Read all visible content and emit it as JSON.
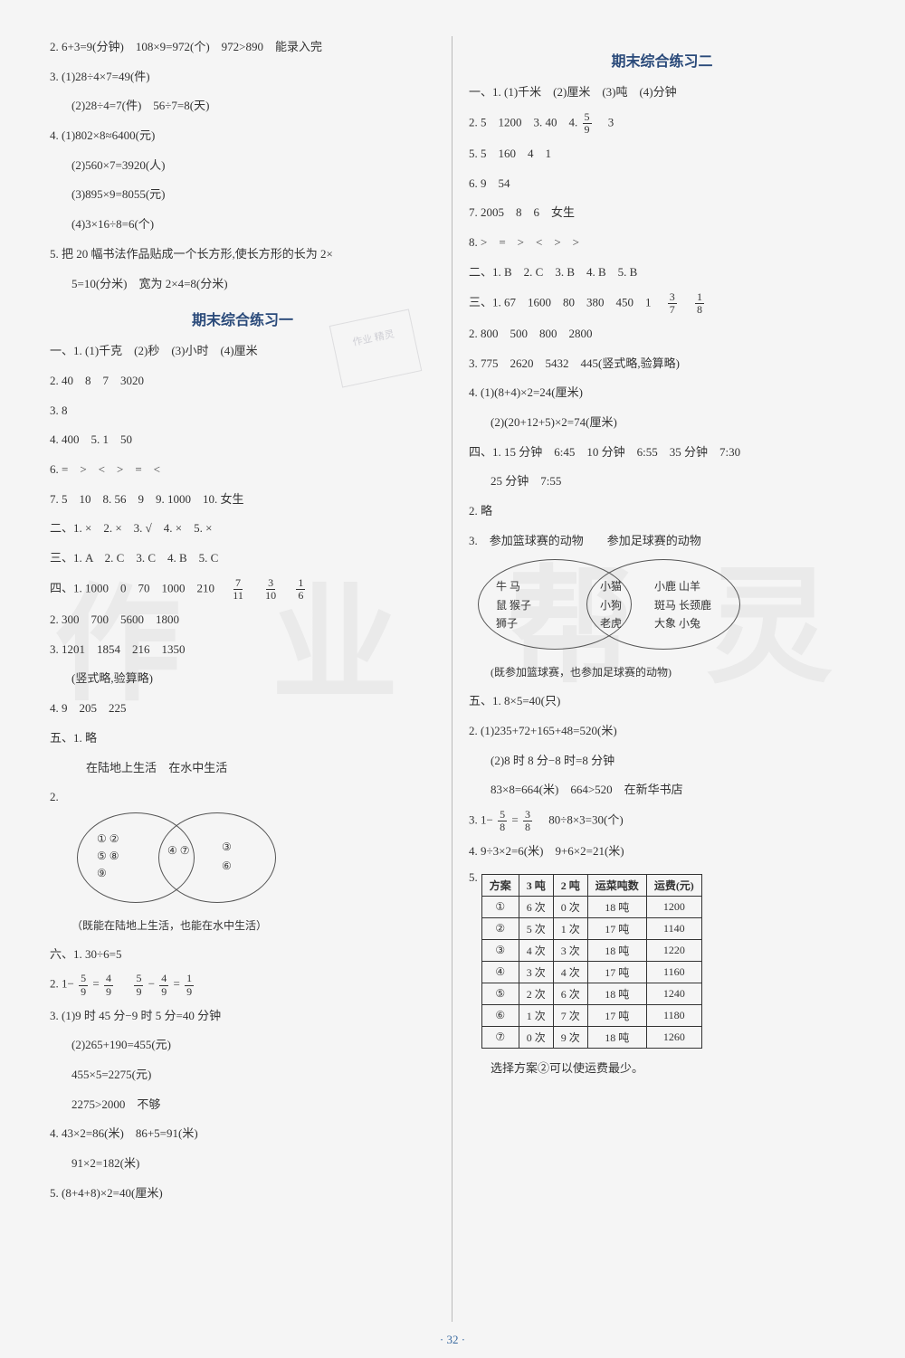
{
  "left": {
    "pre": {
      "l2": "2. 6+3=9(分钟)　108×9=972(个)　972>890　能录入完",
      "l3": "3. (1)28÷4×7=49(件)",
      "l3b": "(2)28÷4=7(件)　56÷7=8(天)",
      "l4": "4. (1)802×8≈6400(元)",
      "l4b": "(2)560×7=3920(人)",
      "l4c": "(3)895×9=8055(元)",
      "l4d": "(4)3×16÷8=6(个)",
      "l5": "5. 把 20 幅书法作品贴成一个长方形,使长方形的长为 2×",
      "l5b": "5=10(分米)　宽为 2×4=8(分米)"
    },
    "title1": "期末综合练习一",
    "s1": {
      "l1": "一、1. (1)千克　(2)秒　(3)小时　(4)厘米",
      "l2": "2. 40　8　7　3020",
      "l3": "3. 8",
      "l4": "4. 400　5. 1　50",
      "l6": "6. =　>　<　>　=　<",
      "l7": "7. 5　10　8. 56　9　9. 1000　10. 女生",
      "l8": "二、1. ×　2. ×　3. √　4. ×　5. ×",
      "l9": "三、1. A　2. C　3. C　4. B　5. C",
      "l10a": "四、1. 1000　0　70　1000　210　",
      "l10f1n": "7",
      "l10f1d": "11",
      "l10f2n": "3",
      "l10f2d": "10",
      "l10f3n": "1",
      "l10f3d": "6",
      "l11": "2. 300　700　5600　1800",
      "l12": "3. 1201　1854　216　1350",
      "l12b": "(竖式略,验算略)",
      "l13": "4. 9　205　225",
      "l14": "五、1. 略",
      "venn_title_l": "在陆地上生活",
      "venn_title_r": "在水中生活",
      "venn_left": "① ②\n⑤ ⑧\n⑨",
      "venn_mid": "④ ⑦",
      "venn_right": "③\n⑥",
      "venn_note": "（既能在陆地上生活，也能在水中生活）",
      "l16": "六、1. 30÷6=5",
      "l17a": "2. 1−",
      "l17f1n": "5",
      "l17f1d": "9",
      "l17b": "=",
      "l17f2n": "4",
      "l17f2d": "9",
      "l17c": "　",
      "l17f3n": "5",
      "l17f3d": "9",
      "l17d": "−",
      "l17f4n": "4",
      "l17f4d": "9",
      "l17e": "=",
      "l17f5n": "1",
      "l17f5d": "9",
      "l18": "3. (1)9 时 45 分−9 时 5 分=40 分钟",
      "l18b": "(2)265+190=455(元)",
      "l18c": "455×5=2275(元)",
      "l18d": "2275>2000　不够",
      "l19": "4. 43×2=86(米)　86+5=91(米)",
      "l19b": "91×2=182(米)",
      "l20": "5. (8+4+8)×2=40(厘米)"
    }
  },
  "right": {
    "title2": "期末综合练习二",
    "s2": {
      "l1": "一、1. (1)千米　(2)厘米　(3)吨　(4)分钟",
      "l2a": "2. 5　1200　3. 40　4. ",
      "l2fn": "5",
      "l2fd": "9",
      "l2b": "　3",
      "l5": "5. 5　160　4　1",
      "l6": "6. 9　54",
      "l7": "7. 2005　8　6　女生",
      "l8": "8. >　=　>　<　>　>",
      "l9": "二、1. B　2. C　3. B　4. B　5. B",
      "l10a": "三、1. 67　1600　80　380　450　1　",
      "l10f1n": "3",
      "l10f1d": "7",
      "l10f2n": "1",
      "l10f2d": "8",
      "l11": "2. 800　500　800　2800",
      "l12": "3. 775　2620　5432　445(竖式略,验算略)",
      "l13": "4. (1)(8+4)×2=24(厘米)",
      "l13b": "(2)(20+12+5)×2=74(厘米)",
      "l14": "四、1. 15 分钟　6:45　10 分钟　6:55　35 分钟　7:30",
      "l14b": "25 分钟　7:55",
      "l15": "2. 略",
      "venn2_head": "3.　参加篮球赛的动物　　参加足球赛的动物",
      "venn2_l": "牛 马\n鼠 猴子\n狮子",
      "venn2_m": "小猫\n小狗\n老虎",
      "venn2_r": "小鹿 山羊\n斑马 长颈鹿\n大象 小兔",
      "venn2_note": "(既参加篮球赛，也参加足球赛的动物)",
      "l17": "五、1. 8×5=40(只)",
      "l18": "2. (1)235+72+165+48=520(米)",
      "l18b": "(2)8 时 8 分−8 时=8 分钟",
      "l18c": "83×8=664(米)　664>520　在新华书店",
      "l19a": "3. 1−",
      "l19f1n": "5",
      "l19f1d": "8",
      "l19b": "=",
      "l19f2n": "3",
      "l19f2d": "8",
      "l19c": "　80÷8×3=30(个)",
      "l20": "4. 9÷3×2=6(米)　9+6×2=21(米)",
      "t5_label": "5.",
      "t5": {
        "headers": [
          "方案",
          "3 吨",
          "2 吨",
          "运菜吨数",
          "运费(元)"
        ],
        "rows": [
          [
            "①",
            "6 次",
            "0 次",
            "18 吨",
            "1200"
          ],
          [
            "②",
            "5 次",
            "1 次",
            "17 吨",
            "1140"
          ],
          [
            "③",
            "4 次",
            "3 次",
            "18 吨",
            "1220"
          ],
          [
            "④",
            "3 次",
            "4 次",
            "17 吨",
            "1160"
          ],
          [
            "⑤",
            "2 次",
            "6 次",
            "18 吨",
            "1240"
          ],
          [
            "⑥",
            "1 次",
            "7 次",
            "17 吨",
            "1180"
          ],
          [
            "⑦",
            "0 次",
            "9 次",
            "18 吨",
            "1260"
          ]
        ]
      },
      "l22": "选择方案②可以使运费最少。"
    }
  },
  "pagenum": "· 32 ·",
  "stamp": "作业\n精灵"
}
